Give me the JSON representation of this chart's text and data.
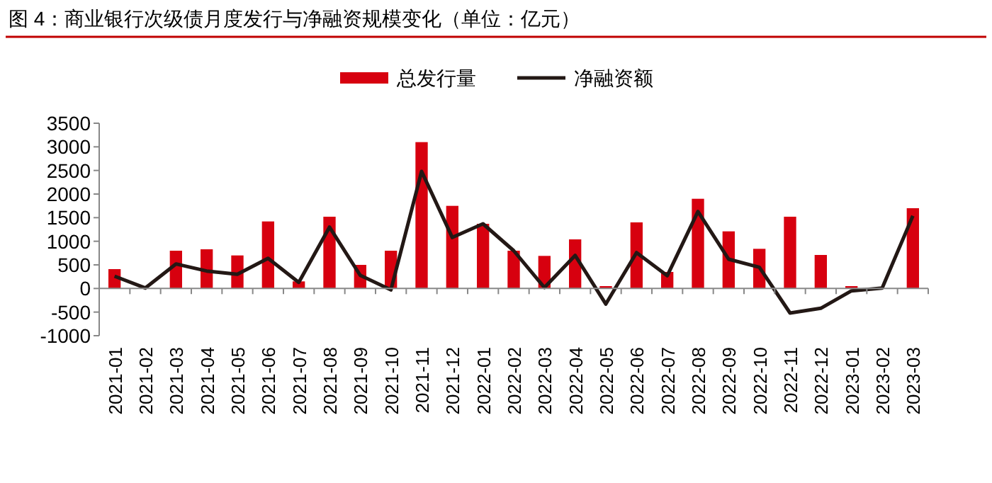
{
  "chart_data": {
    "type": "bar",
    "title": "图 4：商业银行次级债月度发行与净融资规模变化（单位：亿元）",
    "categories": [
      "2021-01",
      "2021-02",
      "2021-03",
      "2021-04",
      "2021-05",
      "2021-06",
      "2021-07",
      "2021-08",
      "2021-09",
      "2021-10",
      "2021-11",
      "2021-12",
      "2022-01",
      "2022-02",
      "2022-03",
      "2022-04",
      "2022-05",
      "2022-06",
      "2022-07",
      "2022-08",
      "2022-09",
      "2022-10",
      "2022-11",
      "2022-12",
      "2023-01",
      "2023-02",
      "2023-03"
    ],
    "series": [
      {
        "name": "总发行量",
        "color": "#d7000f",
        "values": [
          410,
          null,
          800,
          830,
          700,
          1420,
          150,
          1520,
          500,
          800,
          3100,
          1750,
          1370,
          800,
          690,
          1040,
          50,
          1400,
          350,
          1900,
          1210,
          840,
          1520,
          710,
          50,
          0,
          1700
        ]
      },
      {
        "name": "净融资额",
        "type": "line",
        "color": "#231815",
        "values": [
          260,
          10,
          520,
          370,
          300,
          640,
          130,
          1300,
          280,
          -30,
          2480,
          1080,
          1370,
          800,
          20,
          700,
          -330,
          760,
          270,
          1630,
          620,
          450,
          -520,
          -420,
          -50,
          10,
          1540
        ]
      }
    ],
    "ylim": [
      -1000,
      3500
    ],
    "yticks": [
      -1000,
      -500,
      0,
      500,
      1000,
      1500,
      2000,
      2500,
      3000,
      3500
    ],
    "legend": "top"
  }
}
